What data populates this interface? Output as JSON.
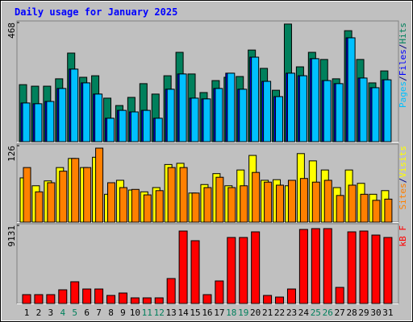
{
  "chart_data": [
    {
      "type": "bar",
      "title": "Daily usage for January 2025",
      "categories": [
        "1",
        "2",
        "3",
        "4",
        "5",
        "6",
        "7",
        "8",
        "9",
        "10",
        "11",
        "12",
        "13",
        "14",
        "15",
        "16",
        "17",
        "18",
        "19",
        "20",
        "21",
        "22",
        "23",
        "24",
        "25",
        "26",
        "27",
        "28",
        "29",
        "30",
        "31"
      ],
      "category_colors": [
        "#000000",
        "#000000",
        "#000000",
        "#00805c",
        "#00805c",
        "#000000",
        "#000000",
        "#000000",
        "#000000",
        "#000000",
        "#00805c",
        "#00805c",
        "#000000",
        "#000000",
        "#000000",
        "#000000",
        "#000000",
        "#00805c",
        "#00805c",
        "#000000",
        "#000000",
        "#000000",
        "#000000",
        "#000000",
        "#00805c",
        "#00805c",
        "#000000",
        "#000000",
        "#000000",
        "#000000",
        "#000000"
      ],
      "legend_separator": "/",
      "series": [
        {
          "name": "Hits",
          "color": "#00805c",
          "values": [
            224,
            218,
            218,
            247,
            348,
            253,
            259,
            171,
            142,
            174,
            228,
            187,
            259,
            351,
            266,
            193,
            240,
            253,
            256,
            360,
            288,
            202,
            462,
            294,
            351,
            323,
            247,
            436,
            323,
            231,
            278
          ]
        },
        {
          "name": "Files",
          "color": "#0000ff",
          "values": [
            152,
            149,
            158,
            209,
            285,
            231,
            187,
            92,
            123,
            117,
            123,
            92,
            206,
            266,
            171,
            168,
            209,
            269,
            206,
            332,
            237,
            177,
            269,
            259,
            326,
            240,
            228,
            408,
            250,
            212,
            243
          ]
        },
        {
          "name": "Pages",
          "color": "#00c0ff",
          "values": [
            152,
            149,
            158,
            209,
            285,
            231,
            187,
            92,
            123,
            117,
            123,
            92,
            206,
            266,
            171,
            168,
            209,
            269,
            206,
            332,
            237,
            177,
            269,
            259,
            326,
            240,
            228,
            408,
            250,
            212,
            243
          ]
        }
      ],
      "ylim": [
        0,
        468
      ],
      "yticks": [
        468
      ]
    },
    {
      "type": "bar",
      "series": [
        {
          "name": "Visits",
          "color": "#ffff00",
          "values": [
            73,
            60,
            68,
            90,
            105,
            90,
            107,
            46,
            69,
            53,
            50,
            57,
            95,
            97,
            48,
            62,
            80,
            60,
            86,
            110,
            69,
            70,
            60,
            113,
            101,
            86,
            57,
            86,
            64,
            46,
            52
          ]
        },
        {
          "name": "Sites",
          "color": "#ff8000",
          "values": [
            90,
            50,
            65,
            84,
            105,
            90,
            122,
            65,
            57,
            54,
            45,
            52,
            90,
            90,
            48,
            57,
            74,
            57,
            60,
            82,
            66,
            61,
            69,
            72,
            66,
            69,
            44,
            61,
            46,
            36,
            38
          ]
        }
      ],
      "ylim": [
        0,
        126
      ],
      "yticks": [
        126
      ]
    },
    {
      "type": "bar",
      "series": [
        {
          "name": "kB F",
          "color": "#ff0000",
          "values": [
            1035,
            1035,
            1035,
            1600,
            2542,
            1694,
            1694,
            941,
            1224,
            659,
            659,
            659,
            2918,
            8472,
            7342,
            1035,
            2636,
            7719,
            7719,
            8378,
            941,
            753,
            1694,
            8660,
            8754,
            8754,
            1883,
            8378,
            8472,
            8001,
            7719
          ]
        }
      ],
      "ylim": [
        0,
        9131
      ],
      "yticks": [
        9131
      ]
    }
  ]
}
